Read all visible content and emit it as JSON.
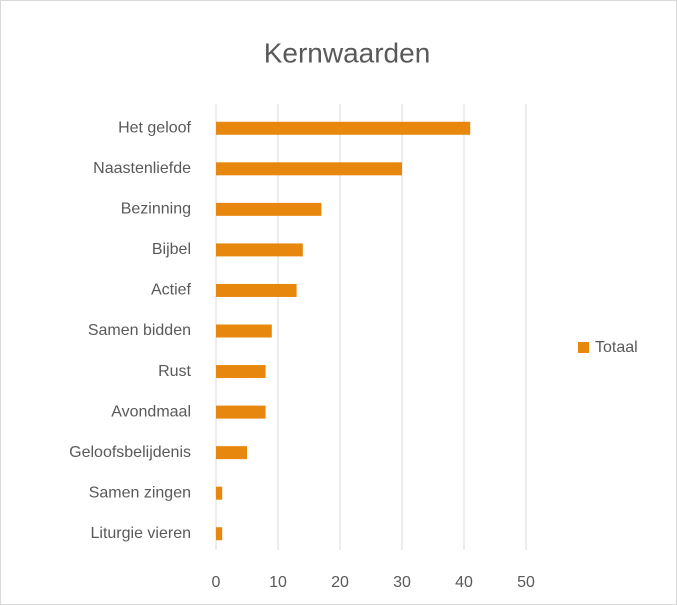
{
  "chart_data": {
    "type": "bar",
    "orientation": "horizontal",
    "title": "Kernwaarden",
    "categories": [
      "Het geloof",
      "Naastenliefde",
      "Bezinning",
      "Bijbel",
      "Actief",
      "Samen bidden",
      "Rust",
      "Avondmaal",
      "Geloofsbelijdenis",
      "Samen zingen",
      "Liturgie vieren"
    ],
    "series": [
      {
        "name": "Totaal",
        "color": "#e8870e",
        "values": [
          41,
          30,
          17,
          14,
          13,
          9,
          8,
          8,
          5,
          1,
          1
        ]
      }
    ],
    "xlim": [
      0,
      50
    ],
    "xticks": [
      0,
      10,
      20,
      30,
      40,
      50
    ],
    "grid": true,
    "legend": "right"
  }
}
